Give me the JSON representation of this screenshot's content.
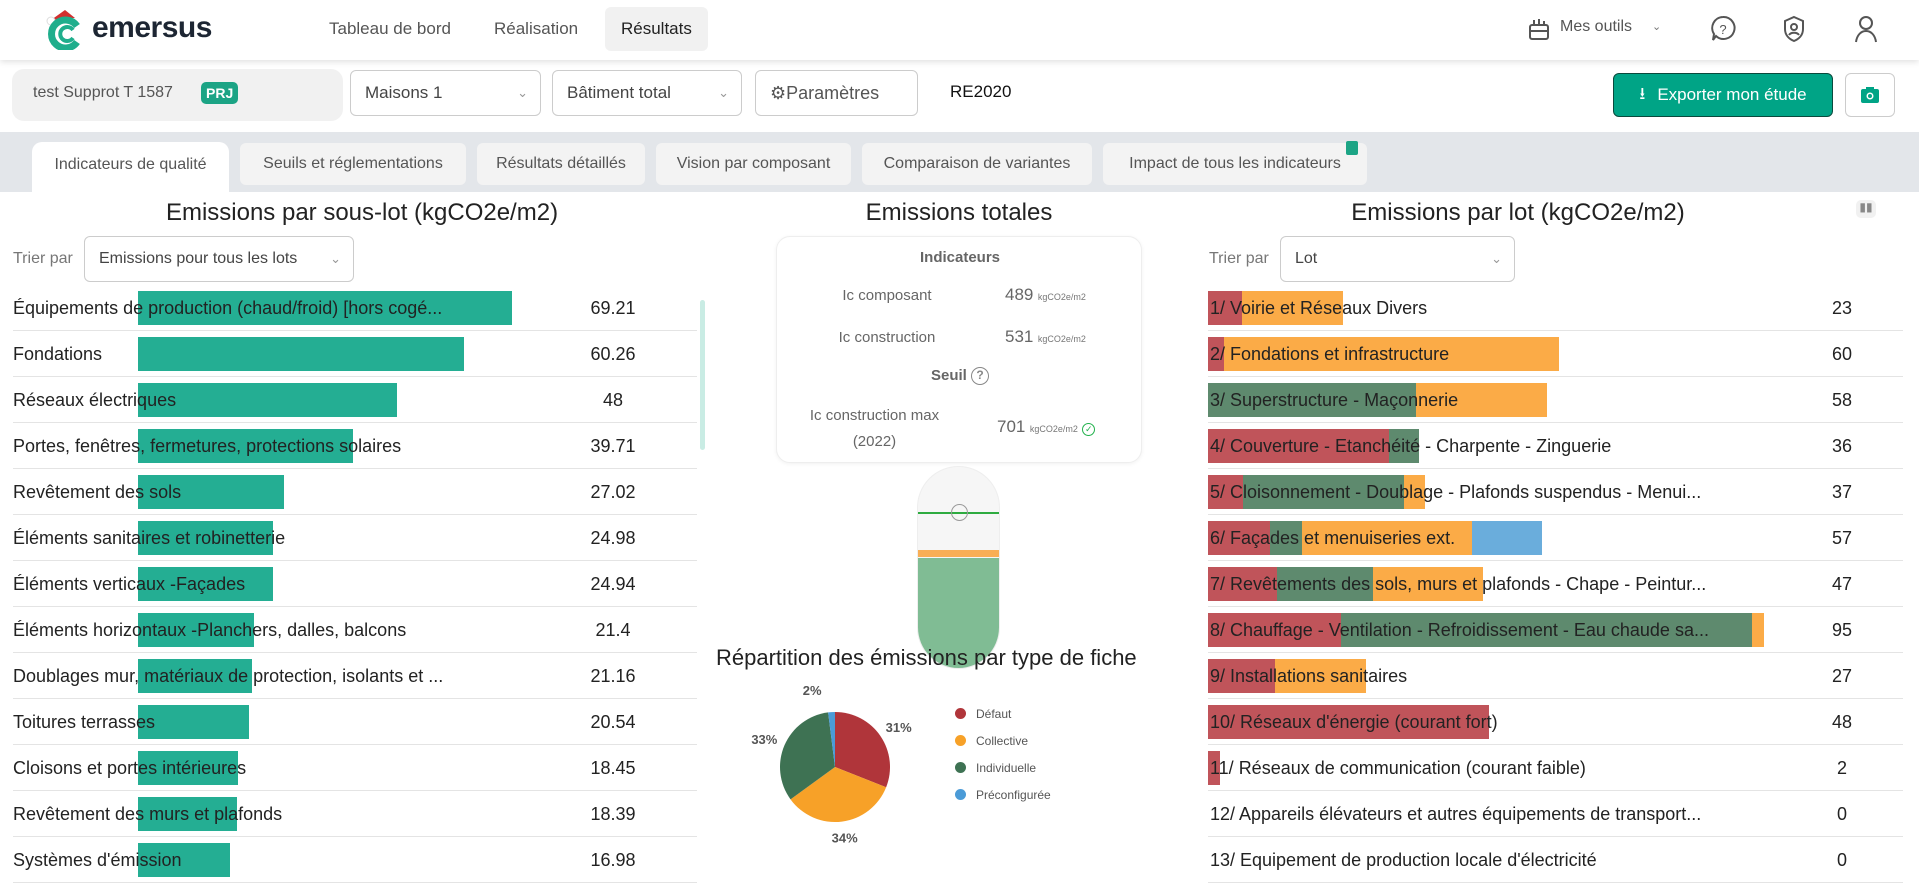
{
  "header": {
    "brand": "emersus",
    "nav": [
      "Tableau de bord",
      "Réalisation",
      "Résultats"
    ],
    "active_nav": 2,
    "tools_label": "Mes outils"
  },
  "toolbar": {
    "project": "test Supprot T 1587",
    "badge": "PRJ",
    "building": "Maisons 1",
    "scope": "Bâtiment total",
    "params": "Paramètres",
    "regulation": "RE2020",
    "export": "Exporter mon étude"
  },
  "tabs": [
    "Indicateurs de qualité",
    "Seuils et réglementations",
    "Résultats détaillés",
    "Vision par composant",
    "Comparaison de variantes",
    "Impact de tous les indicateurs"
  ],
  "left": {
    "title": "Emissions par sous-lot (kgCO2e/m2)",
    "sort_label": "Trier par",
    "sort_value": "Emissions pour tous les lots",
    "bar_color": "#24ae93",
    "max": 69.21,
    "rows": [
      {
        "label": "Équipements de production (chaud/froid) [hors cogé...",
        "value": "69.21",
        "v": 69.21
      },
      {
        "label": "Fondations",
        "value": "60.26",
        "v": 60.26
      },
      {
        "label": "Réseaux électriques",
        "value": "48",
        "v": 48
      },
      {
        "label": "Portes, fenêtres, fermetures, protections solaires",
        "value": "39.71",
        "v": 39.71
      },
      {
        "label": "Revêtement des sols",
        "value": "27.02",
        "v": 27.02
      },
      {
        "label": "Éléments sanitaires et robinetterie",
        "value": "24.98",
        "v": 24.98
      },
      {
        "label": "Éléments verticaux -Façades",
        "value": "24.94",
        "v": 24.94
      },
      {
        "label": "Éléments horizontaux -Planchers, dalles, balcons",
        "value": "21.4",
        "v": 21.4
      },
      {
        "label": "Doublages mur, matériaux de protection, isolants et ...",
        "value": "21.16",
        "v": 21.16
      },
      {
        "label": "Toitures terrasses",
        "value": "20.54",
        "v": 20.54
      },
      {
        "label": "Cloisons et portes intérieures",
        "value": "18.45",
        "v": 18.45
      },
      {
        "label": "Revêtement des murs et plafonds",
        "value": "18.39",
        "v": 18.39
      },
      {
        "label": "Systèmes d'émission",
        "value": "16.98",
        "v": 16.98
      }
    ]
  },
  "middle": {
    "title": "Emissions totales",
    "indicators_title": "Indicateurs",
    "ic_composant_label": "Ic composant",
    "ic_composant": "489",
    "ic_construction_label": "Ic construction",
    "ic_construction": "531",
    "unit": "kgCO2e/m2",
    "seuil_label": "Seuil",
    "max_label": "Ic construction max (2022)",
    "max_value": "701",
    "gauge": {
      "value": 531,
      "threshold": 701,
      "composant": 489
    },
    "pie_title": "Répartition des émissions par type de fiche"
  },
  "chart_data": {
    "type": "pie",
    "title": "Répartition des émissions par type de fiche",
    "slices": [
      {
        "name": "Défaut",
        "value": 31,
        "label": "31%",
        "color": "#b0353a"
      },
      {
        "name": "Collective",
        "value": 34,
        "label": "34%",
        "color": "#f7a128"
      },
      {
        "name": "Individuelle",
        "value": 33,
        "label": "33%",
        "color": "#3e7253"
      },
      {
        "name": "Préconfigurée",
        "value": 2,
        "label": "2%",
        "color": "#4b9bd7"
      }
    ],
    "legend": "right"
  },
  "right": {
    "title": "Emissions par lot (kgCO2e/m2)",
    "sort_label": "Trier par",
    "sort_value": "Lot",
    "max": 95,
    "colors": {
      "defaut": "#c0545a",
      "collective": "#fbab47",
      "individuelle": "#5e8a6e",
      "preconfiguree": "#6aaddc"
    },
    "rows": [
      {
        "label": "1/ Voirie et Réseaux Divers",
        "value": "23",
        "seg": [
          [
            "defaut",
            5.8
          ],
          [
            "collective",
            17.2
          ]
        ]
      },
      {
        "label": "2/ Fondations et infrastructure",
        "value": "60",
        "seg": [
          [
            "defaut",
            2.8
          ],
          [
            "collective",
            57.2
          ]
        ]
      },
      {
        "label": "3/ Superstructure - Maçonnerie",
        "value": "58",
        "seg": [
          [
            "individuelle",
            35.6
          ],
          [
            "collective",
            22.4
          ]
        ]
      },
      {
        "label": "4/ Couverture - Etanchéité - Charpente - Zinguerie",
        "value": "36",
        "seg": [
          [
            "defaut",
            31
          ],
          [
            "individuelle",
            5
          ]
        ]
      },
      {
        "label": "5/ Cloisonnement - Doublage - Plafonds suspendus - Menui...",
        "value": "37",
        "seg": [
          [
            "defaut",
            5.9
          ],
          [
            "individuelle",
            27.6
          ],
          [
            "collective",
            3.5
          ]
        ]
      },
      {
        "label": "6/ Façades et menuiseries ext.",
        "value": "57",
        "seg": [
          [
            "defaut",
            10.6
          ],
          [
            "individuelle",
            5.5
          ],
          [
            "collective",
            29
          ],
          [
            "preconfiguree",
            11.9
          ]
        ]
      },
      {
        "label": "7/ Revêtements des sols, murs et plafonds - Chape - Peintur...",
        "value": "47",
        "seg": [
          [
            "defaut",
            11.8
          ],
          [
            "individuelle",
            16.4
          ],
          [
            "collective",
            18.8
          ]
        ]
      },
      {
        "label": "8/ Chauffage - Ventilation - Refroidissement - Eau chaude sa...",
        "value": "95",
        "seg": [
          [
            "defaut",
            22.8
          ],
          [
            "individuelle",
            70.1
          ],
          [
            "collective",
            2.1
          ]
        ]
      },
      {
        "label": "9/ Installations sanitaires",
        "value": "27",
        "seg": [
          [
            "defaut",
            11.4
          ],
          [
            "collective",
            15.6
          ]
        ]
      },
      {
        "label": "10/ Réseaux d'énergie (courant fort)",
        "value": "48",
        "seg": [
          [
            "defaut",
            48
          ]
        ]
      },
      {
        "label": "11/ Réseaux de communication (courant faible)",
        "value": "2",
        "seg": [
          [
            "defaut",
            2
          ]
        ]
      },
      {
        "label": "12/ Appareils élévateurs et autres équipements de transport...",
        "value": "0",
        "seg": []
      },
      {
        "label": "13/ Equipement de production locale d'électricité",
        "value": "0",
        "seg": []
      }
    ]
  }
}
